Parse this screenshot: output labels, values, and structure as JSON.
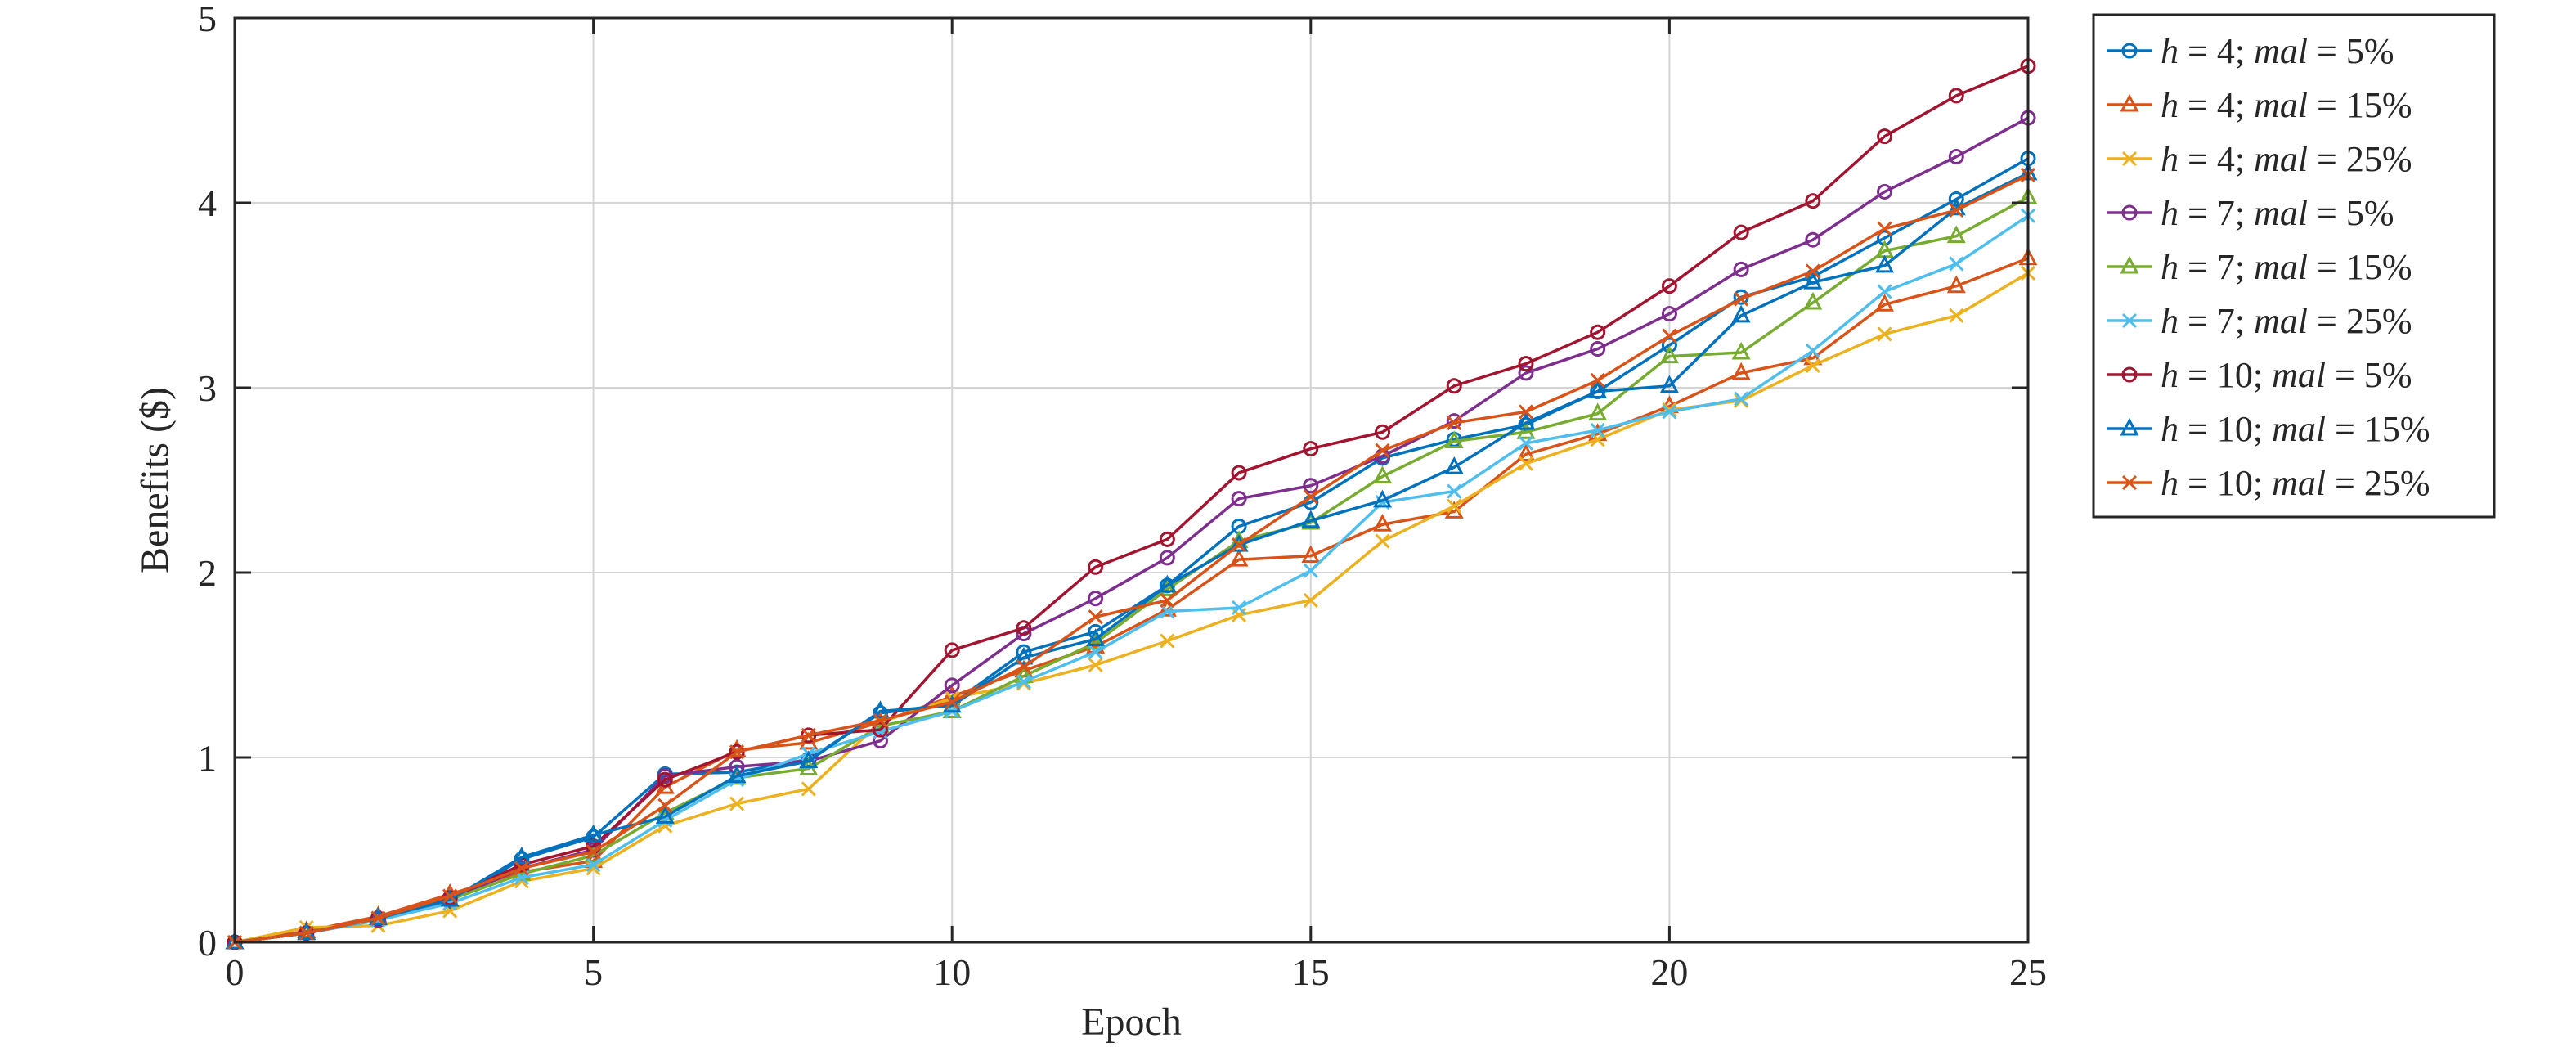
{
  "chart_data": {
    "type": "line",
    "title": "",
    "xlabel": "Epoch",
    "ylabel": "Benefits ($)",
    "xlim": [
      0,
      25
    ],
    "ylim": [
      0,
      5
    ],
    "xticks": [
      0,
      5,
      10,
      15,
      20,
      25
    ],
    "yticks": [
      0,
      1,
      2,
      3,
      4,
      5
    ],
    "grid": true,
    "legend_position": "outside-right-top",
    "x": [
      0,
      1,
      2,
      3,
      4,
      5,
      6,
      7,
      8,
      9,
      10,
      11,
      12,
      13,
      14,
      15,
      16,
      17,
      18,
      19,
      20,
      21,
      22,
      23,
      24,
      25
    ],
    "series": [
      {
        "name": "h = 4; mal = 5%",
        "legend": {
          "h": "4",
          "mal": "5%"
        },
        "color": "#0072BD",
        "marker": "circle",
        "values": [
          0,
          0.05,
          0.12,
          0.22,
          0.45,
          0.57,
          0.91,
          0.92,
          0.99,
          1.24,
          1.29,
          1.57,
          1.68,
          1.93,
          2.25,
          2.38,
          2.62,
          2.72,
          2.8,
          2.98,
          3.23,
          3.49,
          3.6,
          3.81,
          4.02,
          4.24
        ]
      },
      {
        "name": "h = 4; mal = 15%",
        "legend": {
          "h": "4",
          "mal": "15%"
        },
        "color": "#D95319",
        "marker": "triangle",
        "values": [
          0,
          0.06,
          0.14,
          0.26,
          0.38,
          0.44,
          0.84,
          1.04,
          1.08,
          1.19,
          1.33,
          1.47,
          1.6,
          1.8,
          2.07,
          2.09,
          2.26,
          2.33,
          2.64,
          2.75,
          2.9,
          3.08,
          3.16,
          3.45,
          3.55,
          3.7
        ]
      },
      {
        "name": "h = 4; mal = 25%",
        "legend": {
          "h": "4",
          "mal": "25%"
        },
        "color": "#EDB120",
        "marker": "x",
        "values": [
          0,
          0.08,
          0.09,
          0.17,
          0.33,
          0.4,
          0.63,
          0.75,
          0.83,
          1.19,
          1.32,
          1.4,
          1.5,
          1.63,
          1.77,
          1.85,
          2.17,
          2.36,
          2.59,
          2.72,
          2.88,
          2.93,
          3.12,
          3.29,
          3.39,
          3.62
        ]
      },
      {
        "name": "h = 7; mal = 5%",
        "legend": {
          "h": "7",
          "mal": "5%"
        },
        "color": "#7E2F8E",
        "marker": "circle",
        "values": [
          0,
          0.05,
          0.12,
          0.23,
          0.4,
          0.5,
          0.9,
          0.95,
          0.98,
          1.09,
          1.39,
          1.67,
          1.86,
          2.08,
          2.4,
          2.47,
          2.63,
          2.82,
          3.08,
          3.21,
          3.4,
          3.64,
          3.8,
          4.06,
          4.25,
          4.46
        ]
      },
      {
        "name": "h = 7; mal = 15%",
        "legend": {
          "h": "7",
          "mal": "15%"
        },
        "color": "#77AC30",
        "marker": "triangle",
        "values": [
          0,
          0.05,
          0.13,
          0.23,
          0.37,
          0.47,
          0.7,
          0.89,
          0.94,
          1.17,
          1.25,
          1.44,
          1.62,
          1.91,
          2.17,
          2.27,
          2.52,
          2.71,
          2.76,
          2.86,
          3.17,
          3.19,
          3.46,
          3.74,
          3.82,
          4.03
        ]
      },
      {
        "name": "h = 7; mal = 25%",
        "legend": {
          "h": "7",
          "mal": "25%"
        },
        "color": "#4DBEEE",
        "marker": "x",
        "values": [
          0,
          0.05,
          0.12,
          0.21,
          0.35,
          0.42,
          0.66,
          0.88,
          1.02,
          1.14,
          1.25,
          1.41,
          1.57,
          1.79,
          1.81,
          2.01,
          2.38,
          2.44,
          2.7,
          2.77,
          2.87,
          2.94,
          3.2,
          3.52,
          3.67,
          3.93
        ]
      },
      {
        "name": "h = 10; mal = 5%",
        "legend": {
          "h": "10",
          "mal": "5%"
        },
        "color": "#A2142F",
        "marker": "circle",
        "values": [
          0,
          0.05,
          0.13,
          0.24,
          0.42,
          0.52,
          0.88,
          1.03,
          1.12,
          1.15,
          1.58,
          1.7,
          2.03,
          2.18,
          2.54,
          2.67,
          2.76,
          3.01,
          3.13,
          3.3,
          3.55,
          3.84,
          4.01,
          4.36,
          4.58,
          4.74
        ]
      },
      {
        "name": "h = 10; mal = 15%",
        "legend": {
          "h": "10",
          "mal": "15%"
        },
        "color": "#0072BD",
        "marker": "triangle",
        "values": [
          0,
          0.05,
          0.13,
          0.23,
          0.46,
          0.58,
          0.68,
          0.9,
          0.98,
          1.25,
          1.28,
          1.54,
          1.64,
          1.93,
          2.15,
          2.28,
          2.39,
          2.57,
          2.81,
          2.98,
          3.01,
          3.39,
          3.57,
          3.66,
          3.97,
          4.16
        ]
      },
      {
        "name": "h = 10; mal = 25%",
        "legend": {
          "h": "10",
          "mal": "25%"
        },
        "color": "#D95319",
        "marker": "x",
        "values": [
          0,
          0.05,
          0.13,
          0.25,
          0.4,
          0.49,
          0.74,
          1.03,
          1.12,
          1.2,
          1.3,
          1.49,
          1.76,
          1.85,
          2.15,
          2.41,
          2.66,
          2.81,
          2.87,
          3.04,
          3.28,
          3.48,
          3.63,
          3.86,
          3.96,
          4.15
        ]
      }
    ]
  }
}
